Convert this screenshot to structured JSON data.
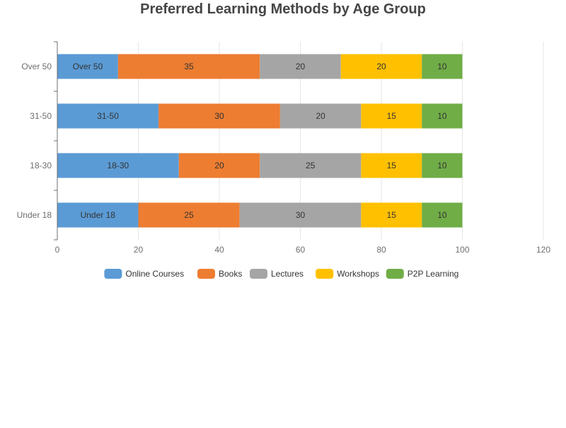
{
  "chart_data": {
    "type": "bar",
    "orientation": "horizontal",
    "stacked": true,
    "title": "Preferred Learning Methods by Age Group",
    "categories": [
      "Under 18",
      "18-30",
      "31-50",
      "Over 50"
    ],
    "series": [
      {
        "name": "Online Courses",
        "values": [
          20,
          30,
          25,
          15
        ],
        "color": "#5b9bd5"
      },
      {
        "name": "Books",
        "values": [
          25,
          20,
          30,
          35
        ],
        "color": "#ed7d31"
      },
      {
        "name": "Lectures",
        "values": [
          30,
          25,
          20,
          20
        ],
        "color": "#a5a5a5"
      },
      {
        "name": "Workshops",
        "values": [
          15,
          15,
          15,
          20
        ],
        "color": "#ffc000"
      },
      {
        "name": "P2P Learning",
        "values": [
          10,
          10,
          10,
          10
        ],
        "color": "#70ad47"
      }
    ],
    "label_first_series_with_category": true,
    "xlim": [
      0,
      120
    ],
    "x_ticks": [
      0,
      20,
      40,
      60,
      80,
      100,
      120
    ],
    "grid": true,
    "legend": "bottom"
  }
}
